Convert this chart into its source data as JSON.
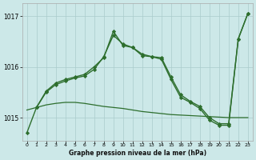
{
  "background_color": "#cce8e8",
  "plot_bg_color": "#cce8e8",
  "grid_color": "#aacccc",
  "line_color": "#2d6e2d",
  "xlabel": "Graphe pression niveau de la mer (hPa)",
  "ylim": [
    1014.55,
    1017.25
  ],
  "yticks": [
    1015,
    1016,
    1017
  ],
  "xlim": [
    -0.5,
    23.5
  ],
  "xticks": [
    0,
    1,
    2,
    3,
    4,
    5,
    6,
    7,
    8,
    9,
    10,
    11,
    12,
    13,
    14,
    15,
    16,
    17,
    18,
    19,
    20,
    21,
    22,
    23
  ],
  "series": [
    {
      "x": [
        0,
        1,
        2,
        3,
        4,
        5,
        6,
        7,
        8,
        9,
        10,
        11,
        12,
        13,
        14,
        15,
        16,
        17,
        18,
        19,
        20,
        21,
        22,
        23
      ],
      "y": [
        1015.15,
        1015.2,
        1015.25,
        1015.28,
        1015.3,
        1015.3,
        1015.28,
        1015.25,
        1015.22,
        1015.2,
        1015.18,
        1015.15,
        1015.12,
        1015.1,
        1015.08,
        1015.06,
        1015.05,
        1015.04,
        1015.03,
        1015.02,
        1015.01,
        1015.0,
        1015.0,
        1015.0
      ],
      "marker": null,
      "linewidth": 0.9
    },
    {
      "x": [
        0,
        1,
        2,
        3,
        4,
        5,
        6,
        7,
        8,
        9,
        10,
        11,
        12,
        13,
        14,
        15,
        16,
        17,
        18,
        19,
        20,
        21,
        22,
        23
      ],
      "y": [
        1014.7,
        1015.2,
        1015.5,
        1015.65,
        1015.72,
        1015.78,
        1015.82,
        1015.95,
        1016.2,
        1016.62,
        1016.45,
        1016.38,
        1016.25,
        1016.2,
        1016.18,
        1015.8,
        1015.45,
        1015.32,
        1015.22,
        1015.0,
        1014.88,
        1014.88,
        1016.55,
        1017.05
      ],
      "marker": "D",
      "markersize": 2.2,
      "linewidth": 1.0
    },
    {
      "x": [
        1,
        2,
        3,
        4,
        5,
        6,
        7,
        8,
        9,
        10,
        11,
        12,
        13,
        14,
        15,
        16,
        17,
        18,
        19,
        20,
        21,
        22,
        23
      ],
      "y": [
        1015.2,
        1015.52,
        1015.68,
        1015.75,
        1015.8,
        1015.85,
        1016.0,
        1016.18,
        1016.7,
        1016.42,
        1016.38,
        1016.22,
        1016.2,
        1016.15,
        1015.75,
        1015.4,
        1015.3,
        1015.18,
        1014.95,
        1014.85,
        1014.85,
        1016.55,
        1017.05
      ],
      "marker": "D",
      "markersize": 2.2,
      "linewidth": 1.0
    }
  ]
}
